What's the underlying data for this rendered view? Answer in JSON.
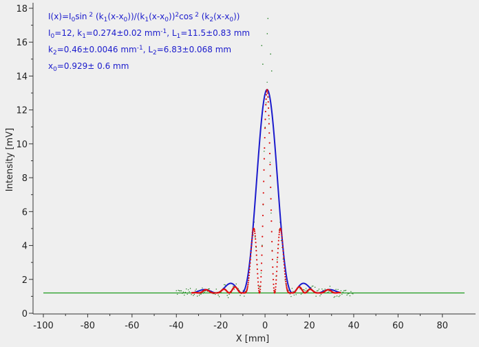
{
  "chart_data": {
    "type": "line",
    "xlabel": "X [mm]",
    "ylabel": "Intensity [mV]",
    "xlim": [
      -100,
      90
    ],
    "ylim": [
      0,
      18
    ],
    "x_ticks": [
      "-100",
      "-80",
      "-60",
      "-40",
      "-20",
      "0",
      "20",
      "40",
      "60",
      "80"
    ],
    "y_ticks": [
      "0",
      "2",
      "4",
      "6",
      "8",
      "10",
      "12",
      "14",
      "16",
      "18"
    ],
    "background": "#efefef",
    "grid": false,
    "annotations": {
      "formula": "I(x)=I0sin 2 (k1(x-x0))/(k1(x-x0))2cos 2 (k2(x-x0))",
      "line1": "I0=12,  k1=0.274±0.02 mm-1,   L1=11.5±0.83 mm",
      "line2": "k2=0.46±0.0046 mm-1,   L2=6.83±0.068 mm",
      "line3": "x0=0.929±  0.6 mm"
    },
    "model": {
      "I0": 12,
      "k1": 0.274,
      "k2": 0.46,
      "x0": 0.929,
      "offset": 1.2
    },
    "series": [
      {
        "role": "baseline",
        "color": "#1a9a1a",
        "x_range": [
          -100,
          90
        ],
        "value": 1.2
      },
      {
        "role": "envelope-fit",
        "color": "#1a1acc",
        "x_range": [
          -33,
          34
        ]
      },
      {
        "role": "fit-points",
        "color": "#dd1111",
        "x_range": [
          -33,
          34
        ]
      },
      {
        "role": "measured-scatter",
        "color": "#1a7a1a",
        "x_range": [
          -40,
          40
        ]
      }
    ]
  }
}
